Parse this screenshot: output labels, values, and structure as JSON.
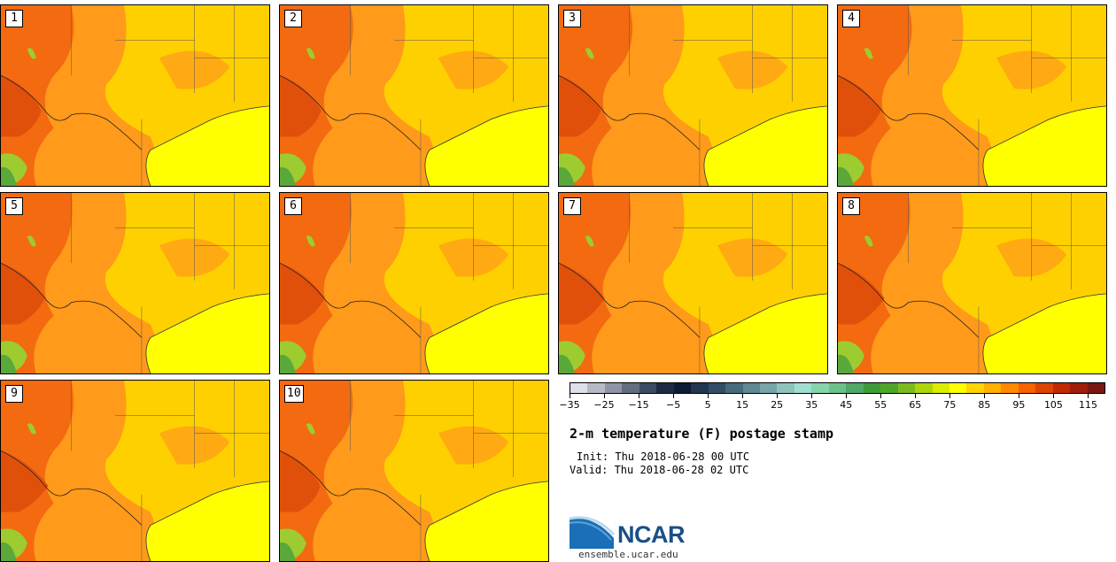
{
  "panels": [
    {
      "label": "1"
    },
    {
      "label": "2"
    },
    {
      "label": "3"
    },
    {
      "label": "4"
    },
    {
      "label": "5"
    },
    {
      "label": "6"
    },
    {
      "label": "7"
    },
    {
      "label": "8"
    },
    {
      "label": "9"
    },
    {
      "label": "10"
    }
  ],
  "colorbar": {
    "colors": [
      "#dde0e8",
      "#b5bac6",
      "#8e95a6",
      "#646d82",
      "#3d4a64",
      "#1e2a44",
      "#0d1a33",
      "#1f3550",
      "#324e66",
      "#466b7c",
      "#5e8892",
      "#77a5a8",
      "#8fc2bd",
      "#9fded0",
      "#86d4ac",
      "#6cc08a",
      "#52a866",
      "#3f9a3b",
      "#4fa52c",
      "#7cbb1d",
      "#aed40c",
      "#dcec00",
      "#ffff00",
      "#ffd400",
      "#ffb000",
      "#ff8a00",
      "#f66300",
      "#dd4400",
      "#c02a00",
      "#a01c0c",
      "#781812"
    ],
    "tick_labels": [
      "−35",
      "−25",
      "−15",
      "−5",
      "5",
      "15",
      "25",
      "35",
      "45",
      "55",
      "65",
      "75",
      "85",
      "95",
      "105",
      "115"
    ]
  },
  "title": "2-m temperature (F) postage stamp",
  "init": "Init: Thu 2018-06-28 00 UTC",
  "valid": "Valid: Thu 2018-06-28 02 UTC",
  "logo": {
    "text": "NCAR",
    "site": "ensemble.ucar.edu",
    "colors": {
      "blue": "#1a4f86",
      "light": "#5ba4d6"
    }
  },
  "map_colors": {
    "base": "#ffd000",
    "hot": "#ff9a1a",
    "hotter": "#f36a10",
    "hottest": "#e0500a",
    "coast_water": "#ffff00",
    "cool": "#9ccc30",
    "cooler": "#5aa83a"
  }
}
